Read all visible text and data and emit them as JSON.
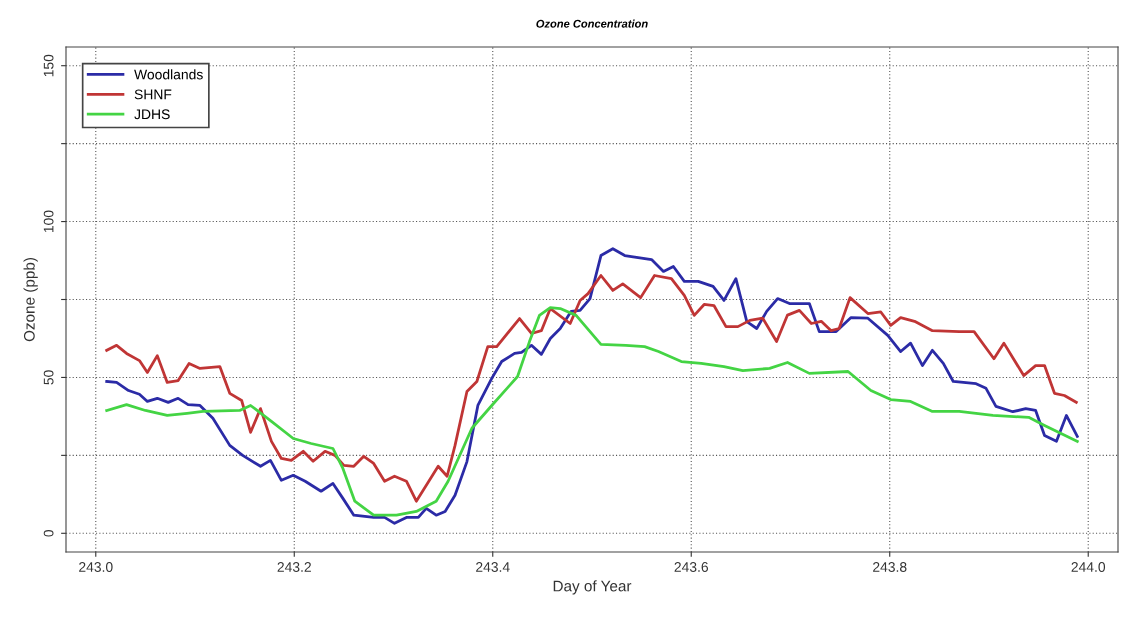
{
  "chart_data": {
    "type": "line",
    "title": "Ozone Concentration",
    "xlabel": "Day of Year",
    "ylabel": "Ozone (ppb)",
    "xlim": [
      242.97,
      244.03
    ],
    "ylim": [
      -6,
      156
    ],
    "xticks": [
      {
        "value": 243.0,
        "label": "243.0"
      },
      {
        "value": 243.2,
        "label": "243.2"
      },
      {
        "value": 243.4,
        "label": "243.4"
      },
      {
        "value": 243.6,
        "label": "243.6"
      },
      {
        "value": 243.8,
        "label": "243.8"
      },
      {
        "value": 244.0,
        "label": "244.0"
      }
    ],
    "yticks": [
      0,
      {
        "value": 25,
        "label": null
      },
      50,
      {
        "value": 75,
        "label": null
      },
      100,
      {
        "value": 125,
        "label": null
      },
      150
    ],
    "grid": true,
    "legend": "top left",
    "line_style": "solid",
    "marker": "none",
    "series": [
      {
        "name": "Woodlands",
        "color": "#2b2ba6",
        "x": [
          243.011,
          243.021,
          243.033,
          243.044,
          243.052,
          243.062,
          243.073,
          243.083,
          243.093,
          243.105,
          243.118,
          243.135,
          243.148,
          243.166,
          243.176,
          243.187,
          243.199,
          243.211,
          243.227,
          243.239,
          243.249,
          243.26,
          243.28,
          243.291,
          243.301,
          243.313,
          243.325,
          243.333,
          243.343,
          243.352,
          243.362,
          243.374,
          243.385,
          243.399,
          243.409,
          243.422,
          243.429,
          243.439,
          243.449,
          243.458,
          243.468,
          243.479,
          243.488,
          243.498,
          243.509,
          243.521,
          243.533,
          243.56,
          243.572,
          243.582,
          243.593,
          243.607,
          243.622,
          243.633,
          243.645,
          243.656,
          243.666,
          243.676,
          243.687,
          243.699,
          243.719,
          243.729,
          243.746,
          243.761,
          243.778,
          243.798,
          243.811,
          243.821,
          243.833,
          243.843,
          243.854,
          243.864,
          243.887,
          243.897,
          243.907,
          243.924,
          243.937,
          243.947,
          243.956,
          243.968,
          243.978,
          243.989
        ],
        "values": [
          48.7,
          48.4,
          45.8,
          44.6,
          42.3,
          43.3,
          42,
          43.3,
          41.3,
          41,
          36.9,
          28.2,
          25,
          21.5,
          23.4,
          17,
          18.6,
          16.7,
          13.5,
          16,
          11.2,
          5.8,
          5.1,
          5.1,
          3.2,
          5.1,
          5.1,
          8,
          5.8,
          7,
          12.2,
          23,
          41,
          49.7,
          55.1,
          57.7,
          58,
          60.3,
          57.4,
          62.5,
          65.7,
          71.2,
          71.5,
          75.3,
          89.1,
          91.3,
          89.1,
          87.8,
          84,
          85.6,
          80.8,
          80.8,
          79.2,
          74.7,
          81.7,
          67.9,
          65.7,
          71.2,
          75.3,
          73.7,
          73.7,
          64.7,
          64.7,
          69.2,
          69,
          63.5,
          58.3,
          61,
          53.8,
          58.7,
          54.5,
          48.7,
          48,
          46.5,
          40.7,
          39,
          40,
          39.4,
          31.4,
          29.5,
          37.8,
          31.1
        ]
      },
      {
        "name": "SHNF",
        "color": "#c03535",
        "x": [
          243.011,
          243.021,
          243.031,
          243.044,
          243.052,
          243.062,
          243.072,
          243.083,
          243.094,
          243.105,
          243.125,
          243.135,
          243.147,
          243.156,
          243.166,
          243.177,
          243.187,
          243.197,
          243.209,
          243.219,
          243.231,
          243.241,
          243.25,
          243.26,
          243.27,
          243.28,
          243.291,
          243.301,
          243.313,
          243.323,
          243.345,
          243.354,
          243.362,
          243.374,
          243.384,
          243.395,
          243.404,
          243.427,
          243.439,
          243.449,
          243.458,
          243.478,
          243.488,
          243.496,
          243.509,
          243.521,
          243.531,
          243.549,
          243.563,
          243.58,
          243.593,
          243.603,
          243.613,
          243.623,
          243.635,
          243.647,
          243.659,
          243.672,
          243.686,
          243.697,
          243.709,
          243.721,
          243.731,
          243.741,
          243.749,
          243.76,
          243.778,
          243.791,
          243.801,
          243.811,
          243.825,
          243.843,
          243.87,
          243.885,
          243.905,
          243.915,
          243.935,
          243.947,
          243.956,
          243.966,
          243.976,
          243.988
        ],
        "values": [
          58.7,
          60.3,
          57.7,
          55.4,
          51.6,
          57,
          48.4,
          49,
          54.5,
          52.9,
          53.5,
          44.9,
          42.6,
          32.4,
          40,
          29.5,
          24,
          23.4,
          26.3,
          23.1,
          26.3,
          25,
          21.8,
          21.5,
          24.7,
          22.4,
          16.7,
          18.3,
          16.7,
          10.3,
          21.5,
          18.3,
          28.2,
          45.5,
          48.7,
          59.9,
          59.9,
          68.9,
          64.1,
          65,
          72.1,
          67.3,
          74.7,
          76.9,
          82.7,
          77.9,
          80,
          75.6,
          82.7,
          81.7,
          76.3,
          69.9,
          73.4,
          73,
          66.3,
          66.3,
          68.3,
          69,
          61.5,
          70,
          71.5,
          67.3,
          68,
          65,
          65.7,
          75.6,
          70.5,
          71,
          66.7,
          69.2,
          68,
          65,
          64.7,
          64.7,
          56,
          61,
          50.6,
          53.8,
          53.8,
          44.9,
          44.2,
          42
        ]
      },
      {
        "name": "JDHS",
        "color": "#44d444",
        "x": [
          243.011,
          243.031,
          243.05,
          243.072,
          243.092,
          243.108,
          243.145,
          243.156,
          243.177,
          243.199,
          243.217,
          243.239,
          243.249,
          243.261,
          243.28,
          243.303,
          243.323,
          243.343,
          243.355,
          243.379,
          243.399,
          243.425,
          243.437,
          243.447,
          243.458,
          243.468,
          243.484,
          243.509,
          243.534,
          243.553,
          243.567,
          243.59,
          243.61,
          243.633,
          243.652,
          243.679,
          243.697,
          243.719,
          243.758,
          243.781,
          243.801,
          243.821,
          243.843,
          243.87,
          243.904,
          243.94,
          243.956,
          243.989
        ],
        "values": [
          39.4,
          41.3,
          39.4,
          37.8,
          38.5,
          39.1,
          39.4,
          41,
          35.9,
          30.4,
          28.8,
          27.2,
          20.8,
          10.3,
          5.8,
          5.8,
          7,
          10.3,
          16.7,
          33.7,
          41,
          50.3,
          61.5,
          69.9,
          72.4,
          72.1,
          69.9,
          60.6,
          60.3,
          59.9,
          58.3,
          55.1,
          54.5,
          53.5,
          52.2,
          52.9,
          54.8,
          51.3,
          51.9,
          45.8,
          42.9,
          42.3,
          39.1,
          39.1,
          37.8,
          37.2,
          34.6,
          29.5
        ]
      }
    ]
  }
}
